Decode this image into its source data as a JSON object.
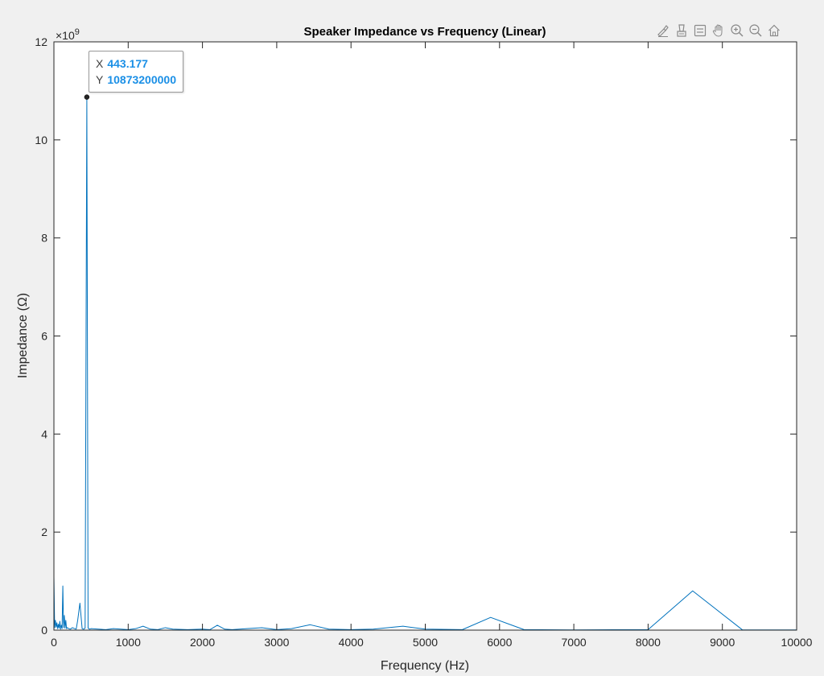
{
  "chart_data": {
    "type": "line",
    "title": "Speaker Impedance vs Frequency (Linear)",
    "xlabel": "Frequency (Hz)",
    "ylabel": "Impedance (Ω)",
    "xlim": [
      0,
      10000
    ],
    "ylim": [
      0,
      12000000000
    ],
    "x_ticks": [
      0,
      1000,
      2000,
      3000,
      4000,
      5000,
      6000,
      7000,
      8000,
      9000,
      10000
    ],
    "y_ticks": [
      0,
      2,
      4,
      6,
      8,
      10,
      12
    ],
    "y_exponent_label": "×10",
    "y_exponent_power": "9",
    "grid": false,
    "series_color": "#0072bd",
    "series": [
      {
        "x": [
          0,
          10,
          20,
          30,
          40,
          50,
          60,
          70,
          80,
          90,
          100,
          110,
          120,
          130,
          140,
          150,
          160,
          170,
          180,
          200,
          220,
          250,
          280,
          300,
          320,
          350,
          380,
          400,
          420,
          443.177,
          460,
          480,
          500,
          600,
          700,
          800,
          900,
          1000,
          1100,
          1200,
          1300,
          1400,
          1500,
          1600,
          1800,
          2000,
          2100,
          2200,
          2300,
          2400,
          2600,
          2800,
          3000,
          3200,
          3450,
          3700,
          4000,
          4300,
          4700,
          5000,
          5500,
          5880,
          6330,
          7000,
          8000,
          8600,
          9270,
          10000
        ],
        "y": [
          1100000000,
          50000000,
          200000000,
          60000000,
          150000000,
          30000000,
          120000000,
          40000000,
          180000000,
          20000000,
          100000000,
          30000000,
          900000000,
          50000000,
          300000000,
          40000000,
          200000000,
          30000000,
          50000000,
          30000000,
          20000000,
          50000000,
          30000000,
          20000000,
          200000000,
          550000000,
          30000000,
          20000000,
          40000000,
          10873200000,
          40000000,
          20000000,
          30000000,
          20000000,
          10000000,
          30000000,
          20000000,
          10000000,
          30000000,
          80000000,
          20000000,
          10000000,
          50000000,
          20000000,
          10000000,
          20000000,
          10000000,
          100000000,
          20000000,
          10000000,
          30000000,
          50000000,
          10000000,
          30000000,
          110000000,
          20000000,
          10000000,
          20000000,
          80000000,
          20000000,
          10000000,
          260000000,
          10000000,
          5000000,
          10000000,
          800000000,
          5000000,
          5000000
        ]
      }
    ],
    "datatip": {
      "x_key": "X",
      "x_value": "443.177",
      "y_key": "Y",
      "y_value": "10873200000",
      "point_x": 443.177,
      "point_y": 10873200000
    }
  },
  "toolbar": {
    "items": [
      {
        "name": "brush-icon"
      },
      {
        "name": "data-cursor-icon"
      },
      {
        "name": "legend-icon"
      },
      {
        "name": "pan-icon"
      },
      {
        "name": "zoom-in-icon"
      },
      {
        "name": "zoom-out-icon"
      },
      {
        "name": "home-icon"
      }
    ]
  }
}
